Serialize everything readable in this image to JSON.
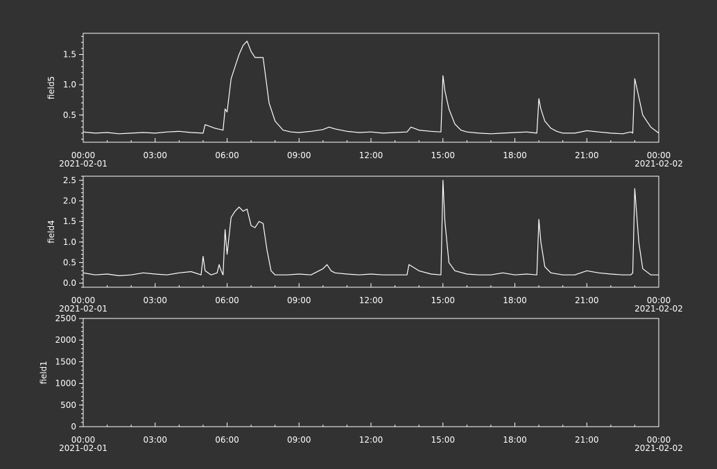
{
  "colors": {
    "background": "#323232",
    "axis": "#ffffff",
    "line": "#ffffff"
  },
  "chart_data": [
    {
      "type": "line",
      "title": "",
      "xlabel": "",
      "ylabel": "field5",
      "xlim": [
        "2021-02-01 00:00",
        "2021-02-02 00:00"
      ],
      "ylim": [
        0.05,
        1.85
      ],
      "x_ticks": [
        "00:00",
        "03:00",
        "06:00",
        "09:00",
        "12:00",
        "15:00",
        "18:00",
        "21:00",
        "00:00"
      ],
      "x_date_labels": [
        "2021-02-01",
        "2021-02-02"
      ],
      "y_ticks": [
        "0.5",
        "1.0",
        "1.5"
      ],
      "grid": false,
      "series": [
        {
          "x": [
            "00:00",
            "00:30",
            "01:00",
            "01:30",
            "02:00",
            "02:30",
            "03:00",
            "03:30",
            "04:00",
            "04:30",
            "05:00",
            "05:05",
            "05:30",
            "05:50",
            "05:55",
            "06:00",
            "06:10",
            "06:20",
            "06:30",
            "06:40",
            "06:50",
            "07:00",
            "07:10",
            "07:20",
            "07:30",
            "07:35",
            "07:45",
            "08:00",
            "08:20",
            "08:40",
            "09:00",
            "09:30",
            "10:00",
            "10:15",
            "10:30",
            "11:00",
            "11:30",
            "12:00",
            "12:30",
            "13:00",
            "13:30",
            "13:40",
            "14:00",
            "14:30",
            "14:55",
            "15:00",
            "15:05",
            "15:15",
            "15:30",
            "15:45",
            "16:00",
            "16:30",
            "17:00",
            "17:30",
            "18:00",
            "18:30",
            "18:55",
            "19:00",
            "19:05",
            "19:15",
            "19:30",
            "19:45",
            "20:00",
            "20:30",
            "21:00",
            "21:30",
            "22:00",
            "22:30",
            "22:50",
            "22:55",
            "23:00",
            "23:10",
            "23:20",
            "23:40",
            "00:00"
          ],
          "y": [
            0.22,
            0.2,
            0.21,
            0.19,
            0.2,
            0.21,
            0.2,
            0.22,
            0.23,
            0.21,
            0.2,
            0.34,
            0.28,
            0.25,
            0.6,
            0.55,
            1.1,
            1.3,
            1.5,
            1.65,
            1.72,
            1.55,
            1.45,
            1.45,
            1.45,
            1.2,
            0.7,
            0.4,
            0.25,
            0.22,
            0.21,
            0.23,
            0.26,
            0.3,
            0.27,
            0.23,
            0.21,
            0.22,
            0.2,
            0.21,
            0.22,
            0.3,
            0.25,
            0.23,
            0.22,
            1.15,
            0.9,
            0.6,
            0.35,
            0.25,
            0.22,
            0.2,
            0.19,
            0.2,
            0.21,
            0.22,
            0.2,
            0.77,
            0.6,
            0.4,
            0.28,
            0.23,
            0.2,
            0.2,
            0.24,
            0.22,
            0.2,
            0.19,
            0.22,
            0.2,
            1.1,
            0.8,
            0.5,
            0.3,
            0.2
          ]
        }
      ]
    },
    {
      "type": "line",
      "title": "",
      "xlabel": "",
      "ylabel": "field4",
      "xlim": [
        "2021-02-01 00:00",
        "2021-02-02 00:00"
      ],
      "ylim": [
        -0.1,
        2.6
      ],
      "x_ticks": [
        "00:00",
        "03:00",
        "06:00",
        "09:00",
        "12:00",
        "15:00",
        "18:00",
        "21:00",
        "00:00"
      ],
      "x_date_labels": [
        "2021-02-01",
        "2021-02-02"
      ],
      "y_ticks": [
        "0.0",
        "0.5",
        "1.0",
        "1.5",
        "2.0",
        "2.5"
      ],
      "grid": false,
      "series": [
        {
          "x": [
            "00:00",
            "00:30",
            "01:00",
            "01:30",
            "02:00",
            "02:30",
            "03:00",
            "03:30",
            "04:00",
            "04:30",
            "04:55",
            "05:00",
            "05:05",
            "05:20",
            "05:35",
            "05:40",
            "05:45",
            "05:50",
            "05:55",
            "06:00",
            "06:10",
            "06:20",
            "06:30",
            "06:40",
            "06:50",
            "07:00",
            "07:10",
            "07:20",
            "07:30",
            "07:40",
            "07:50",
            "08:00",
            "08:30",
            "09:00",
            "09:30",
            "10:00",
            "10:10",
            "10:20",
            "10:30",
            "11:00",
            "11:30",
            "12:00",
            "12:30",
            "13:00",
            "13:30",
            "13:35",
            "14:00",
            "14:30",
            "14:55",
            "15:00",
            "15:05",
            "15:15",
            "15:30",
            "16:00",
            "16:30",
            "17:00",
            "17:30",
            "18:00",
            "18:30",
            "18:55",
            "19:00",
            "19:05",
            "19:15",
            "19:30",
            "20:00",
            "20:30",
            "21:00",
            "21:30",
            "22:00",
            "22:30",
            "22:50",
            "22:55",
            "23:00",
            "23:10",
            "23:20",
            "23:40",
            "00:00"
          ],
          "y": [
            0.25,
            0.2,
            0.22,
            0.18,
            0.2,
            0.25,
            0.22,
            0.2,
            0.25,
            0.28,
            0.2,
            0.65,
            0.3,
            0.2,
            0.25,
            0.45,
            0.3,
            0.2,
            1.3,
            0.7,
            1.6,
            1.75,
            1.85,
            1.75,
            1.8,
            1.4,
            1.35,
            1.5,
            1.45,
            0.8,
            0.3,
            0.2,
            0.2,
            0.22,
            0.2,
            0.35,
            0.45,
            0.3,
            0.25,
            0.22,
            0.2,
            0.22,
            0.2,
            0.2,
            0.2,
            0.45,
            0.3,
            0.22,
            0.2,
            2.5,
            1.5,
            0.5,
            0.3,
            0.22,
            0.2,
            0.2,
            0.25,
            0.2,
            0.22,
            0.2,
            1.55,
            1.0,
            0.4,
            0.25,
            0.2,
            0.2,
            0.3,
            0.25,
            0.22,
            0.2,
            0.2,
            0.25,
            2.3,
            1.0,
            0.35,
            0.2,
            0.2
          ]
        }
      ]
    },
    {
      "type": "line",
      "title": "",
      "xlabel": "",
      "ylabel": "field1",
      "xlim": [
        "2021-02-01 00:00",
        "2021-02-02 00:00"
      ],
      "ylim": [
        0,
        2500
      ],
      "x_ticks": [
        "00:00",
        "03:00",
        "06:00",
        "09:00",
        "12:00",
        "15:00",
        "18:00",
        "21:00",
        "00:00"
      ],
      "x_date_labels": [
        "2021-02-01",
        "2021-02-02"
      ],
      "y_ticks": [
        "0",
        "500",
        "1000",
        "1500",
        "2000",
        "2500"
      ],
      "grid": false,
      "series": []
    }
  ]
}
